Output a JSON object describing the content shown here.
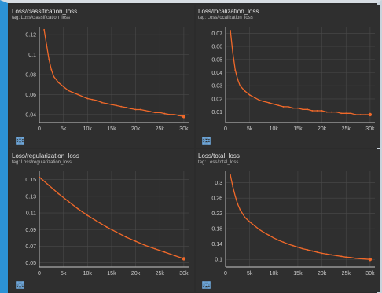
{
  "colors": {
    "line": "#f0692a",
    "grid": "#4a4a4a",
    "axis": "#c8c8c8",
    "tick_text": "#cfcfcf",
    "accent_border": "#2c92d6",
    "icon": "#6fa8dc"
  },
  "toolbar_icons": [
    "expand-icon",
    "data-table-icon",
    "fit-domain-icon"
  ],
  "chart_data": [
    {
      "type": "line",
      "title": "Loss/classification_loss",
      "subtitle": "tag: Loss/classification_loss",
      "xlim": [
        0,
        31000
      ],
      "ylim": [
        0.032,
        0.128
      ],
      "x_ticks": [
        0,
        5000,
        10000,
        15000,
        20000,
        25000,
        30000
      ],
      "x_tick_labels": [
        "0",
        "5k",
        "10k",
        "15k",
        "20k",
        "25k",
        "30k"
      ],
      "y_ticks": [
        0.04,
        0.06,
        0.08,
        0.1,
        0.12
      ],
      "y_tick_labels": [
        "0.04",
        "0.06",
        "0.08",
        "0.1",
        "0.12"
      ],
      "grid": true,
      "series": [
        {
          "x": [
            1000,
            1500,
            2000,
            2500,
            3000,
            4000,
            5000,
            6000,
            7000,
            8000,
            9000,
            10000,
            11000,
            12000,
            13000,
            14000,
            15000,
            16000,
            17000,
            18000,
            19000,
            20000,
            21000,
            22000,
            23000,
            24000,
            25000,
            26000,
            27000,
            28000,
            29000,
            30000
          ],
          "y": [
            0.125,
            0.11,
            0.095,
            0.085,
            0.078,
            0.072,
            0.068,
            0.064,
            0.062,
            0.06,
            0.058,
            0.056,
            0.055,
            0.054,
            0.052,
            0.051,
            0.05,
            0.049,
            0.048,
            0.047,
            0.046,
            0.045,
            0.045,
            0.044,
            0.043,
            0.042,
            0.042,
            0.041,
            0.04,
            0.04,
            0.039,
            0.038
          ]
        }
      ]
    },
    {
      "type": "line",
      "title": "Loss/localization_loss",
      "subtitle": "tag: Loss/localization_loss",
      "xlim": [
        0,
        31000
      ],
      "ylim": [
        0.002,
        0.075
      ],
      "x_ticks": [
        0,
        5000,
        10000,
        15000,
        20000,
        25000,
        30000
      ],
      "x_tick_labels": [
        "0",
        "5k",
        "10k",
        "15k",
        "20k",
        "25k",
        "30k"
      ],
      "y_ticks": [
        0.01,
        0.02,
        0.03,
        0.04,
        0.05,
        0.06,
        0.07
      ],
      "y_tick_labels": [
        "0.01",
        "0.02",
        "0.03",
        "0.04",
        "0.05",
        "0.06",
        "0.07"
      ],
      "grid": true,
      "series": [
        {
          "x": [
            1000,
            1500,
            2000,
            2500,
            3000,
            4000,
            5000,
            6000,
            7000,
            8000,
            9000,
            10000,
            11000,
            12000,
            13000,
            14000,
            15000,
            16000,
            17000,
            18000,
            19000,
            20000,
            21000,
            22000,
            23000,
            24000,
            25000,
            26000,
            27000,
            28000,
            29000,
            30000
          ],
          "y": [
            0.072,
            0.055,
            0.042,
            0.035,
            0.03,
            0.026,
            0.023,
            0.021,
            0.019,
            0.018,
            0.017,
            0.016,
            0.015,
            0.014,
            0.014,
            0.013,
            0.013,
            0.012,
            0.012,
            0.011,
            0.011,
            0.011,
            0.01,
            0.01,
            0.01,
            0.009,
            0.009,
            0.009,
            0.008,
            0.008,
            0.008,
            0.008
          ]
        }
      ]
    },
    {
      "type": "line",
      "title": "Loss/regularization_loss",
      "subtitle": "tag: Loss/regularization_loss",
      "xlim": [
        0,
        31000
      ],
      "ylim": [
        0.045,
        0.16
      ],
      "x_ticks": [
        0,
        5000,
        10000,
        15000,
        20000,
        25000,
        30000
      ],
      "x_tick_labels": [
        "0",
        "5k",
        "10k",
        "15k",
        "20k",
        "25k",
        "30k"
      ],
      "y_ticks": [
        0.05,
        0.07,
        0.09,
        0.11,
        0.13,
        0.15
      ],
      "y_tick_labels": [
        "0.05",
        "0.07",
        "0.09",
        "0.11",
        "0.13",
        "0.15"
      ],
      "grid": true,
      "series": [
        {
          "x": [
            0,
            2000,
            4000,
            6000,
            8000,
            10000,
            12000,
            14000,
            16000,
            18000,
            20000,
            22000,
            24000,
            26000,
            28000,
            30000
          ],
          "y": [
            0.153,
            0.143,
            0.133,
            0.124,
            0.115,
            0.107,
            0.1,
            0.093,
            0.087,
            0.081,
            0.076,
            0.071,
            0.067,
            0.063,
            0.059,
            0.055
          ]
        }
      ]
    },
    {
      "type": "line",
      "title": "Loss/total_loss",
      "subtitle": "tag: Loss/total_loss",
      "xlim": [
        0,
        31000
      ],
      "ylim": [
        0.08,
        0.33
      ],
      "x_ticks": [
        0,
        5000,
        10000,
        15000,
        20000,
        25000,
        30000
      ],
      "x_tick_labels": [
        "0",
        "5k",
        "10k",
        "15k",
        "20k",
        "25k",
        "30k"
      ],
      "y_ticks": [
        0.1,
        0.14,
        0.18,
        0.22,
        0.26,
        0.3
      ],
      "y_tick_labels": [
        "0.1",
        "0.14",
        "0.18",
        "0.22",
        "0.26",
        "0.3"
      ],
      "grid": true,
      "series": [
        {
          "x": [
            1000,
            1500,
            2000,
            2500,
            3000,
            4000,
            5000,
            6000,
            7000,
            8000,
            9000,
            10000,
            11000,
            12000,
            13000,
            14000,
            15000,
            16000,
            17000,
            18000,
            19000,
            20000,
            21000,
            22000,
            23000,
            24000,
            25000,
            26000,
            27000,
            28000,
            29000,
            30000
          ],
          "y": [
            0.32,
            0.29,
            0.265,
            0.245,
            0.23,
            0.21,
            0.198,
            0.188,
            0.178,
            0.17,
            0.163,
            0.156,
            0.15,
            0.145,
            0.14,
            0.136,
            0.132,
            0.128,
            0.125,
            0.122,
            0.119,
            0.116,
            0.114,
            0.112,
            0.11,
            0.108,
            0.106,
            0.105,
            0.103,
            0.102,
            0.101,
            0.1
          ]
        }
      ]
    }
  ]
}
